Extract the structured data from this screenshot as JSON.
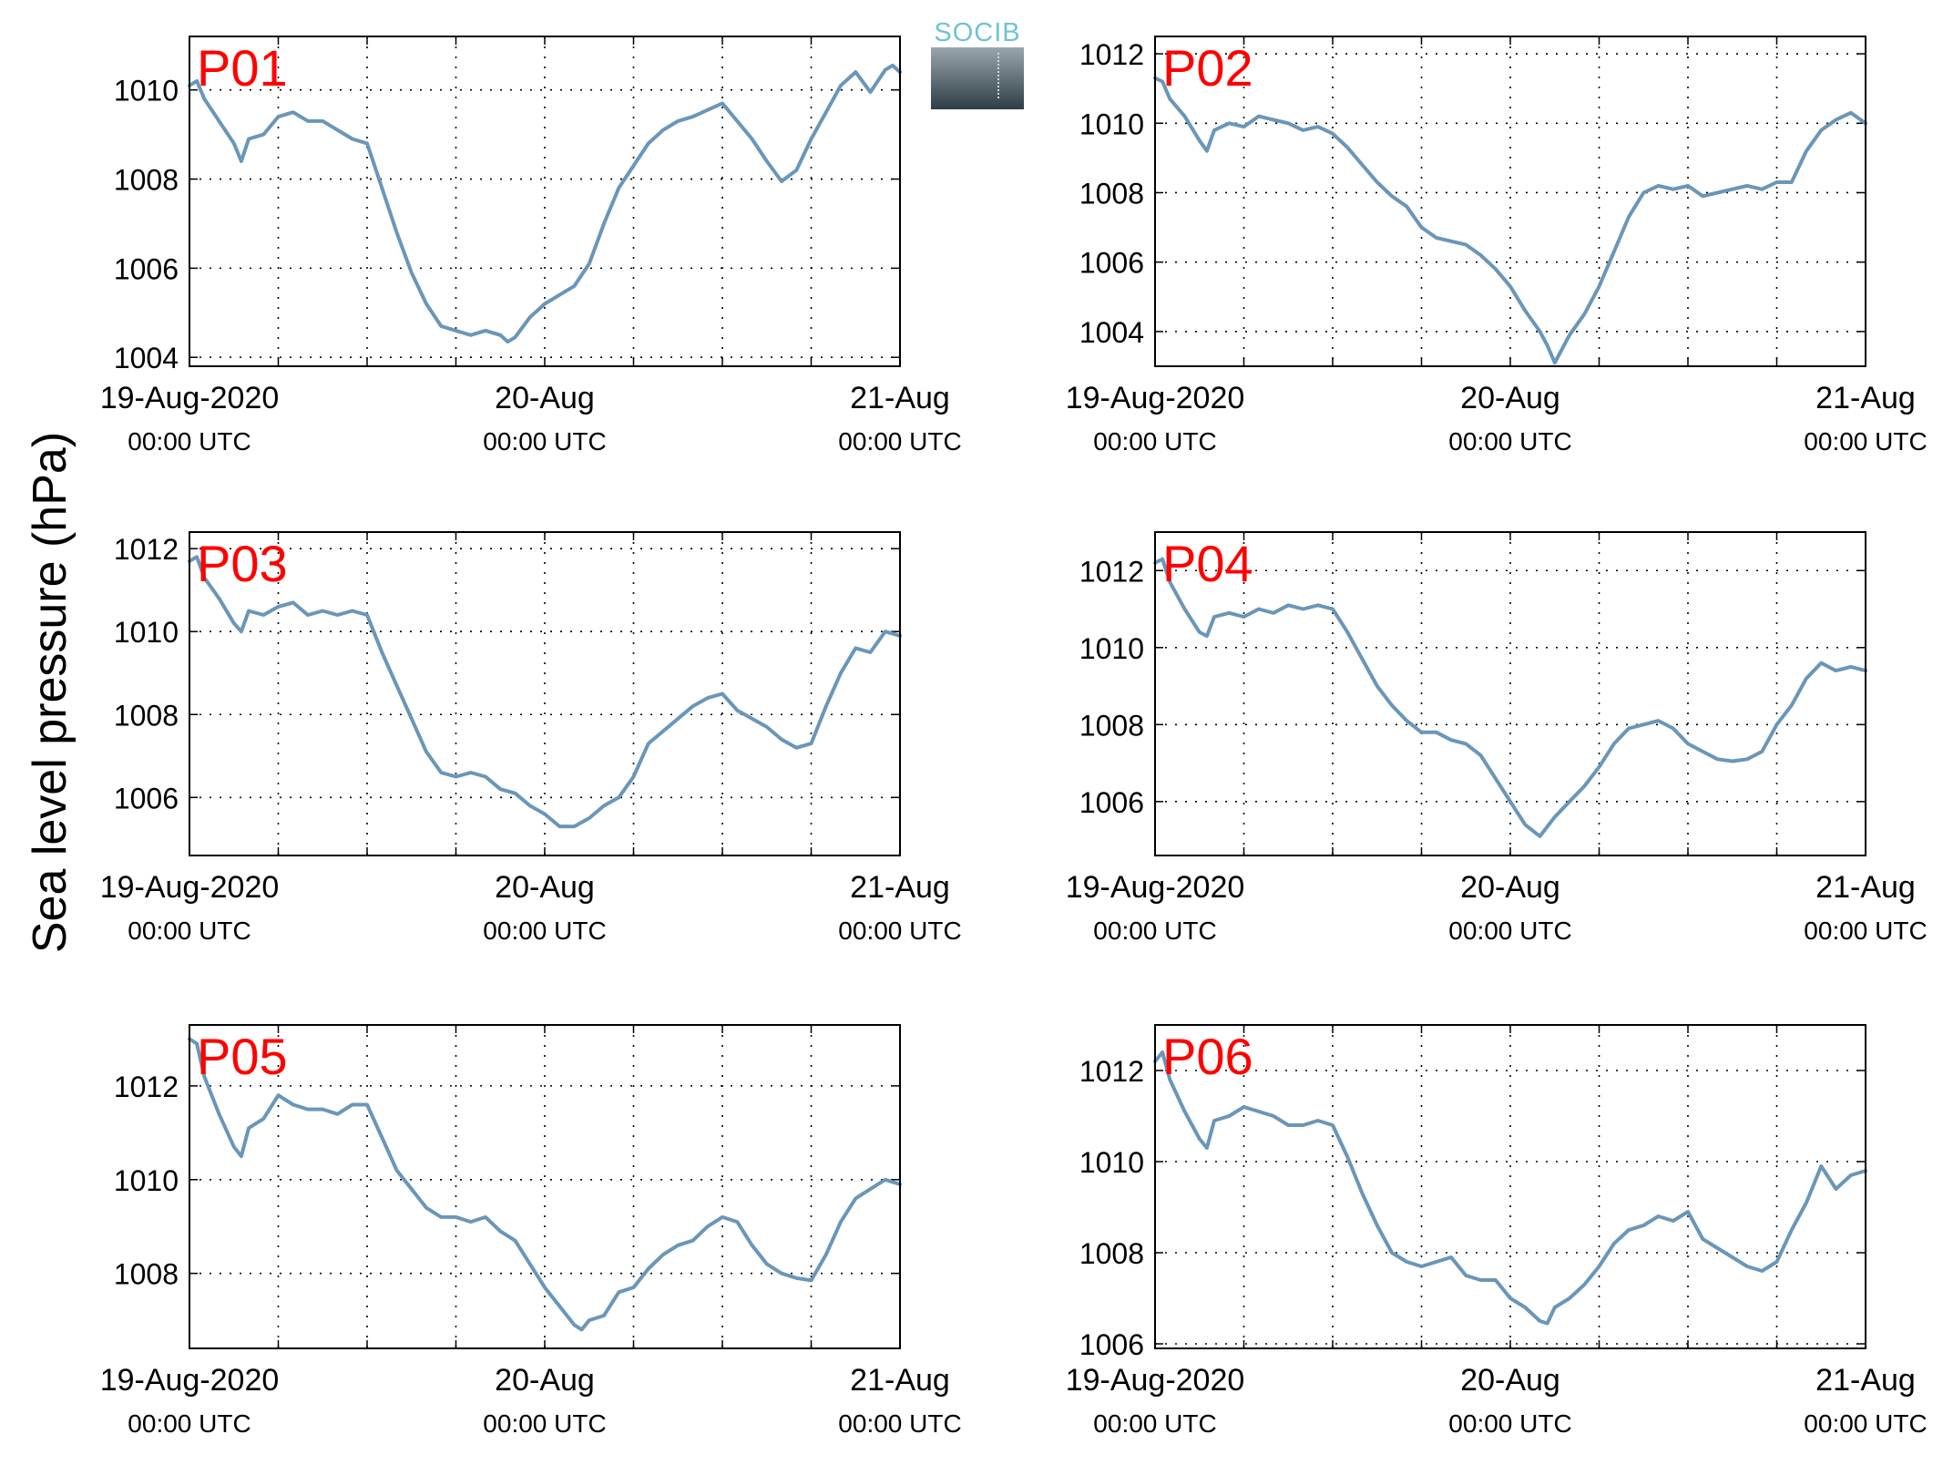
{
  "figure": {
    "ylabel": "Sea level pressure (hPa)",
    "logo_text": "SOCIB",
    "line_color": "#6a96b8",
    "label_color": "#ff0000"
  },
  "chart_data": [
    {
      "type": "line",
      "name": "P01",
      "ylim": [
        1003.8,
        1011.2
      ],
      "yticks": [
        1004,
        1006,
        1008,
        1010
      ],
      "xlim": [
        0,
        48
      ],
      "xticks": [
        {
          "x": 0,
          "line1": "19-Aug-2020",
          "line2": "00:00 UTC"
        },
        {
          "x": 24,
          "line1": "20-Aug",
          "line2": "00:00 UTC"
        },
        {
          "x": 48,
          "line1": "21-Aug",
          "line2": "00:00 UTC"
        }
      ],
      "grid": true,
      "x": [
        0,
        0.5,
        1,
        2,
        3,
        3.5,
        4,
        5,
        6,
        7,
        8,
        9,
        10,
        11,
        12,
        13,
        14,
        15,
        16,
        17,
        18,
        19,
        20,
        21,
        21.5,
        22,
        23,
        24,
        25,
        26,
        27,
        28,
        29,
        30,
        31,
        32,
        33,
        34,
        35,
        36,
        37,
        38,
        39,
        40,
        41,
        42,
        43,
        44,
        45,
        46,
        47,
        47.5,
        48
      ],
      "y": [
        1010.1,
        1010.2,
        1009.8,
        1009.3,
        1008.8,
        1008.4,
        1008.9,
        1009.0,
        1009.4,
        1009.5,
        1009.3,
        1009.3,
        1009.1,
        1008.9,
        1008.8,
        1007.8,
        1006.8,
        1005.9,
        1005.2,
        1004.7,
        1004.6,
        1004.5,
        1004.6,
        1004.5,
        1004.35,
        1004.45,
        1004.9,
        1005.2,
        1005.4,
        1005.6,
        1006.1,
        1007.0,
        1007.8,
        1008.3,
        1008.8,
        1009.1,
        1009.3,
        1009.4,
        1009.55,
        1009.7,
        1009.3,
        1008.9,
        1008.4,
        1007.95,
        1008.2,
        1008.9,
        1009.5,
        1010.1,
        1010.4,
        1009.95,
        1010.45,
        1010.55,
        1010.4
      ]
    },
    {
      "type": "line",
      "name": "P02",
      "ylim": [
        1003,
        1012.5
      ],
      "yticks": [
        1004,
        1006,
        1008,
        1010,
        1012
      ],
      "xlim": [
        0,
        48
      ],
      "xticks": [
        {
          "x": 0,
          "line1": "19-Aug-2020",
          "line2": "00:00 UTC"
        },
        {
          "x": 24,
          "line1": "20-Aug",
          "line2": "00:00 UTC"
        },
        {
          "x": 48,
          "line1": "21-Aug",
          "line2": "00:00 UTC"
        }
      ],
      "grid": true,
      "x": [
        0,
        0.5,
        1,
        2,
        3,
        3.5,
        4,
        5,
        6,
        7,
        8,
        9,
        10,
        11,
        12,
        13,
        14,
        15,
        16,
        17,
        18,
        19,
        20,
        21,
        22,
        23,
        24,
        25,
        26,
        26.5,
        27,
        28,
        29,
        30,
        31,
        32,
        33,
        34,
        35,
        36,
        37,
        38,
        39,
        40,
        41,
        42,
        43,
        44,
        45,
        46,
        47,
        48
      ],
      "y": [
        1011.3,
        1011.2,
        1010.7,
        1010.2,
        1009.5,
        1009.2,
        1009.8,
        1010.0,
        1009.9,
        1010.2,
        1010.1,
        1010.0,
        1009.8,
        1009.9,
        1009.7,
        1009.3,
        1008.8,
        1008.3,
        1007.9,
        1007.6,
        1007.0,
        1006.7,
        1006.6,
        1006.5,
        1006.2,
        1005.8,
        1005.3,
        1004.6,
        1004.0,
        1003.6,
        1003.1,
        1003.9,
        1004.5,
        1005.3,
        1006.3,
        1007.3,
        1008.0,
        1008.2,
        1008.1,
        1008.2,
        1007.9,
        1008.0,
        1008.1,
        1008.2,
        1008.1,
        1008.3,
        1008.3,
        1009.2,
        1009.8,
        1010.1,
        1010.3,
        1010.0
      ]
    },
    {
      "type": "line",
      "name": "P03",
      "ylim": [
        1004.6,
        1012.4
      ],
      "yticks": [
        1006,
        1008,
        1010,
        1012
      ],
      "xlim": [
        0,
        48
      ],
      "xticks": [
        {
          "x": 0,
          "line1": "19-Aug-2020",
          "line2": "00:00 UTC"
        },
        {
          "x": 24,
          "line1": "20-Aug",
          "line2": "00:00 UTC"
        },
        {
          "x": 48,
          "line1": "21-Aug",
          "line2": "00:00 UTC"
        }
      ],
      "grid": true,
      "x": [
        0,
        0.5,
        1,
        2,
        3,
        3.5,
        4,
        5,
        6,
        7,
        8,
        9,
        10,
        11,
        12,
        13,
        14,
        15,
        16,
        17,
        18,
        19,
        20,
        21,
        22,
        23,
        24,
        25,
        26,
        27,
        28,
        29,
        30,
        31,
        32,
        33,
        34,
        35,
        36,
        37,
        38,
        39,
        40,
        41,
        42,
        43,
        44,
        45,
        46,
        47,
        48
      ],
      "y": [
        1011.7,
        1011.8,
        1011.3,
        1010.8,
        1010.2,
        1010.0,
        1010.5,
        1010.4,
        1010.6,
        1010.7,
        1010.4,
        1010.5,
        1010.4,
        1010.5,
        1010.4,
        1009.5,
        1008.7,
        1007.9,
        1007.1,
        1006.6,
        1006.5,
        1006.6,
        1006.5,
        1006.2,
        1006.1,
        1005.8,
        1005.6,
        1005.3,
        1005.3,
        1005.5,
        1005.8,
        1006.0,
        1006.5,
        1007.3,
        1007.6,
        1007.9,
        1008.2,
        1008.4,
        1008.5,
        1008.1,
        1007.9,
        1007.7,
        1007.4,
        1007.2,
        1007.3,
        1008.2,
        1009.0,
        1009.6,
        1009.5,
        1010.0,
        1009.9
      ]
    },
    {
      "type": "line",
      "name": "P04",
      "ylim": [
        1004.6,
        1013
      ],
      "yticks": [
        1006,
        1008,
        1010,
        1012
      ],
      "xlim": [
        0,
        48
      ],
      "xticks": [
        {
          "x": 0,
          "line1": "19-Aug-2020",
          "line2": "00:00 UTC"
        },
        {
          "x": 24,
          "line1": "20-Aug",
          "line2": "00:00 UTC"
        },
        {
          "x": 48,
          "line1": "21-Aug",
          "line2": "00:00 UTC"
        }
      ],
      "grid": true,
      "x": [
        0,
        0.5,
        1,
        2,
        3,
        3.5,
        4,
        5,
        6,
        7,
        8,
        9,
        10,
        11,
        12,
        13,
        14,
        15,
        16,
        17,
        18,
        19,
        20,
        21,
        22,
        23,
        24,
        25,
        26,
        27,
        28,
        29,
        30,
        31,
        32,
        33,
        34,
        35,
        36,
        37,
        38,
        39,
        40,
        41,
        42,
        43,
        44,
        45,
        46,
        47,
        48
      ],
      "y": [
        1012.2,
        1012.3,
        1011.7,
        1011.0,
        1010.4,
        1010.3,
        1010.8,
        1010.9,
        1010.8,
        1011.0,
        1010.9,
        1011.1,
        1011.0,
        1011.1,
        1011.0,
        1010.4,
        1009.7,
        1009.0,
        1008.5,
        1008.1,
        1007.8,
        1007.8,
        1007.6,
        1007.5,
        1007.2,
        1006.6,
        1006.0,
        1005.4,
        1005.1,
        1005.6,
        1006.0,
        1006.4,
        1006.9,
        1007.5,
        1007.9,
        1008.0,
        1008.1,
        1007.9,
        1007.5,
        1007.3,
        1007.1,
        1007.05,
        1007.1,
        1007.3,
        1008.0,
        1008.5,
        1009.2,
        1009.6,
        1009.4,
        1009.5,
        1009.4
      ]
    },
    {
      "type": "line",
      "name": "P05",
      "ylim": [
        1006.4,
        1013.3
      ],
      "yticks": [
        1008,
        1010,
        1012
      ],
      "xlim": [
        0,
        48
      ],
      "xticks": [
        {
          "x": 0,
          "line1": "19-Aug-2020",
          "line2": "00:00 UTC"
        },
        {
          "x": 24,
          "line1": "20-Aug",
          "line2": "00:00 UTC"
        },
        {
          "x": 48,
          "line1": "21-Aug",
          "line2": "00:00 UTC"
        }
      ],
      "grid": true,
      "x": [
        0,
        0.5,
        1,
        2,
        3,
        3.5,
        4,
        5,
        6,
        7,
        8,
        9,
        10,
        11,
        12,
        13,
        14,
        15,
        16,
        17,
        18,
        19,
        20,
        21,
        22,
        23,
        24,
        25,
        26,
        26.5,
        27,
        28,
        29,
        30,
        31,
        32,
        33,
        34,
        35,
        36,
        37,
        38,
        39,
        40,
        41,
        42,
        43,
        44,
        45,
        46,
        47,
        48
      ],
      "y": [
        1013.0,
        1012.9,
        1012.2,
        1011.4,
        1010.7,
        1010.5,
        1011.1,
        1011.3,
        1011.8,
        1011.6,
        1011.5,
        1011.5,
        1011.4,
        1011.6,
        1011.6,
        1010.9,
        1010.2,
        1009.8,
        1009.4,
        1009.2,
        1009.2,
        1009.1,
        1009.2,
        1008.9,
        1008.7,
        1008.2,
        1007.7,
        1007.3,
        1006.9,
        1006.8,
        1007.0,
        1007.1,
        1007.6,
        1007.7,
        1008.1,
        1008.4,
        1008.6,
        1008.7,
        1009.0,
        1009.2,
        1009.1,
        1008.6,
        1008.2,
        1008.0,
        1007.9,
        1007.85,
        1008.4,
        1009.1,
        1009.6,
        1009.8,
        1010.0,
        1009.9
      ]
    },
    {
      "type": "line",
      "name": "P06",
      "ylim": [
        1005.9,
        1013
      ],
      "yticks": [
        1006,
        1008,
        1010,
        1012
      ],
      "xlim": [
        0,
        48
      ],
      "xticks": [
        {
          "x": 0,
          "line1": "19-Aug-2020",
          "line2": "00:00 UTC"
        },
        {
          "x": 24,
          "line1": "20-Aug",
          "line2": "00:00 UTC"
        },
        {
          "x": 48,
          "line1": "21-Aug",
          "line2": "00:00 UTC"
        }
      ],
      "grid": true,
      "x": [
        0,
        0.5,
        1,
        2,
        3,
        3.5,
        4,
        5,
        6,
        7,
        8,
        9,
        10,
        11,
        12,
        13,
        14,
        15,
        16,
        17,
        18,
        19,
        20,
        21,
        22,
        23,
        24,
        25,
        26,
        26.5,
        27,
        28,
        29,
        30,
        31,
        32,
        33,
        34,
        35,
        36,
        37,
        38,
        39,
        40,
        41,
        42,
        43,
        44,
        45,
        46,
        47,
        48
      ],
      "y": [
        1012.2,
        1012.4,
        1011.8,
        1011.1,
        1010.5,
        1010.3,
        1010.9,
        1011.0,
        1011.2,
        1011.1,
        1011.0,
        1010.8,
        1010.8,
        1010.9,
        1010.8,
        1010.1,
        1009.3,
        1008.6,
        1008.0,
        1007.8,
        1007.7,
        1007.8,
        1007.9,
        1007.5,
        1007.4,
        1007.4,
        1007.0,
        1006.8,
        1006.5,
        1006.45,
        1006.8,
        1007.0,
        1007.3,
        1007.7,
        1008.2,
        1008.5,
        1008.6,
        1008.8,
        1008.7,
        1008.9,
        1008.3,
        1008.1,
        1007.9,
        1007.7,
        1007.6,
        1007.8,
        1008.5,
        1009.1,
        1009.9,
        1009.4,
        1009.7,
        1009.8
      ]
    }
  ]
}
